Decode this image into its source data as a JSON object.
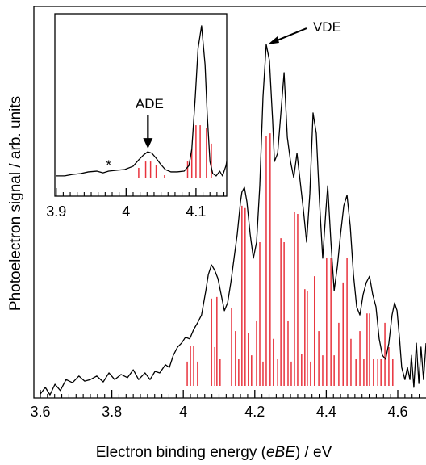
{
  "chart_data": [
    {
      "type": "line",
      "ylabel": "Photoelectron signal / arb. units",
      "xlabel": [
        "Electron binding energy (",
        "eBE",
        ") / eV"
      ],
      "xlim": [
        3.582,
        4.679
      ],
      "ylim": [
        0,
        100
      ],
      "xticks": [
        3.6,
        3.8,
        4.0,
        4.2,
        4.4,
        4.6
      ],
      "xminorticks": [
        3.62,
        3.64,
        3.66,
        3.68,
        3.7,
        3.72,
        3.74,
        3.76,
        3.78,
        3.82,
        3.84,
        3.86,
        3.88,
        3.9,
        3.92,
        3.94,
        3.96,
        3.98,
        4.02,
        4.04,
        4.06,
        4.08,
        4.1,
        4.12,
        4.14,
        4.16,
        4.18,
        4.22,
        4.24,
        4.26,
        4.28,
        4.3,
        4.32,
        4.34,
        4.36,
        4.38,
        4.42,
        4.44,
        4.46,
        4.48,
        4.5,
        4.52,
        4.54,
        4.56,
        4.58,
        4.62,
        4.64,
        4.66
      ],
      "annotations": [
        {
          "text": "VDE",
          "x": 4.232,
          "y": 90.3
        }
      ],
      "line": {
        "color": "#000000",
        "x": [
          3.6,
          3.614,
          3.627,
          3.641,
          3.656,
          3.672,
          3.69,
          3.708,
          3.724,
          3.74,
          3.758,
          3.776,
          3.792,
          3.808,
          3.826,
          3.844,
          3.86,
          3.875,
          3.893,
          3.907,
          3.921,
          3.934,
          3.95,
          3.961,
          3.972,
          3.984,
          3.995,
          4.006,
          4.018,
          4.029,
          4.04,
          4.051,
          4.063,
          4.07,
          4.079,
          4.088,
          4.097,
          4.106,
          4.115,
          4.124,
          4.133,
          4.142,
          4.151,
          4.16,
          4.164,
          4.171,
          4.178,
          4.187,
          4.196,
          4.205,
          4.214,
          4.223,
          4.232,
          4.241,
          4.25,
          4.255,
          4.264,
          4.273,
          4.282,
          4.291,
          4.3,
          4.309,
          4.318,
          4.327,
          4.336,
          4.345,
          4.354,
          4.363,
          4.372,
          4.381,
          4.39,
          4.399,
          4.404,
          4.413,
          4.422,
          4.431,
          4.44,
          4.449,
          4.458,
          4.467,
          4.476,
          4.485,
          4.494,
          4.503,
          4.512,
          4.521,
          4.53,
          4.539,
          4.548,
          4.557,
          4.566,
          4.575,
          4.584,
          4.591,
          4.598,
          4.605,
          4.611,
          4.62,
          4.627,
          4.634,
          4.638,
          4.645,
          4.652,
          4.659,
          4.665,
          4.672,
          4.679
        ],
        "values": [
          1.0,
          2.7,
          0.8,
          3.5,
          1.9,
          4.7,
          3.9,
          5.6,
          4.3,
          4.7,
          5.6,
          4.1,
          6.4,
          4.7,
          6.0,
          5.2,
          7.2,
          4.7,
          6.4,
          4.7,
          6.8,
          6.4,
          8.5,
          7.8,
          10.9,
          13.0,
          14.0,
          15.5,
          15.1,
          17.5,
          19.2,
          21.2,
          27.4,
          31.5,
          34.0,
          32.6,
          30.5,
          26.4,
          22.3,
          24.3,
          29.5,
          35.7,
          41.9,
          50.1,
          52.6,
          53.8,
          50.1,
          41.9,
          35.7,
          39.8,
          54.2,
          76.9,
          90.3,
          86.2,
          70.7,
          60.4,
          62.5,
          72.8,
          83.1,
          66.6,
          60.4,
          56.3,
          62.5,
          55.3,
          48.0,
          39.8,
          52.2,
          72.8,
          67.6,
          50.1,
          35.7,
          48.0,
          54.2,
          39.8,
          27.4,
          33.6,
          41.9,
          49.1,
          51.8,
          43.9,
          31.5,
          23.3,
          21.2,
          26.4,
          29.5,
          31.1,
          26.4,
          23.3,
          15.1,
          10.9,
          9.9,
          14.0,
          21.2,
          24.3,
          22.3,
          15.1,
          7.8,
          4.7,
          7.8,
          4.7,
          10.9,
          2.7,
          14.0,
          3.7,
          13.0,
          4.7,
          14.0
        ]
      },
      "sticks": {
        "color": "#e8323c",
        "x": [
          4.011,
          4.02,
          4.029,
          4.04,
          4.079,
          4.088,
          4.094,
          4.103,
          4.135,
          4.146,
          4.155,
          4.164,
          4.173,
          4.182,
          4.191,
          4.205,
          4.214,
          4.223,
          4.232,
          4.243,
          4.252,
          4.264,
          4.273,
          4.282,
          4.293,
          4.302,
          4.311,
          4.32,
          4.331,
          4.34,
          4.347,
          4.356,
          4.367,
          4.379,
          4.39,
          4.401,
          4.413,
          4.422,
          4.435,
          4.447,
          4.458,
          4.469,
          4.483,
          4.494,
          4.505,
          4.514,
          4.521,
          4.532,
          4.544,
          4.553,
          4.564,
          4.575,
          4.586
        ],
        "values": [
          9.3,
          13.4,
          13.4,
          9.3,
          25.4,
          13.0,
          25.8,
          9.9,
          22.9,
          17.1,
          9.9,
          49.1,
          48.5,
          16.7,
          10.9,
          19.6,
          39.8,
          9.3,
          67.0,
          67.6,
          15.1,
          9.9,
          40.8,
          39.8,
          19.6,
          9.3,
          47.6,
          47.0,
          11.3,
          27.8,
          27.4,
          9.3,
          31.1,
          17.1,
          10.9,
          35.7,
          35.7,
          10.9,
          19.2,
          29.5,
          35.7,
          15.1,
          9.9,
          17.1,
          9.9,
          21.6,
          21.6,
          9.9,
          9.9,
          9.9,
          19.2,
          13.0,
          9.9
        ]
      }
    },
    {
      "type": "line",
      "xlim": [
        3.898,
        4.144
      ],
      "ylim": [
        0,
        100
      ],
      "xticks": [
        3.9,
        4.0,
        4.1
      ],
      "xminorticks": [
        3.91,
        3.92,
        3.93,
        3.94,
        3.95,
        3.96,
        3.97,
        3.98,
        3.99,
        4.01,
        4.02,
        4.03,
        4.04,
        4.05,
        4.06,
        4.07,
        4.08,
        4.09,
        4.11,
        4.12,
        4.13,
        4.14
      ],
      "annotations": [
        {
          "text": "ADE",
          "x": 4.037,
          "y": 24.3
        },
        {
          "text": "*",
          "x": 3.975,
          "y": 13.7
        }
      ],
      "line": {
        "color": "#000000",
        "x": [
          3.9,
          3.912,
          3.923,
          3.935,
          3.946,
          3.958,
          3.967,
          3.975,
          3.987,
          3.998,
          4.01,
          4.018,
          4.025,
          4.031,
          4.037,
          4.043,
          4.049,
          4.056,
          4.064,
          4.073,
          4.083,
          4.09,
          4.094,
          4.099,
          4.103,
          4.108,
          4.113,
          4.116,
          4.12,
          4.124,
          4.129,
          4.134,
          4.138,
          4.143,
          4.144
        ],
        "values": [
          11.1,
          11.1,
          11.9,
          12.4,
          13.3,
          13.7,
          12.8,
          13.7,
          14.2,
          14.6,
          16.4,
          19.9,
          22.6,
          24.3,
          23.5,
          20.8,
          17.7,
          14.6,
          13.3,
          13.3,
          13.7,
          16.8,
          25.7,
          54.4,
          81.0,
          93.4,
          72.1,
          45.6,
          19.0,
          12.4,
          11.1,
          13.7,
          11.1,
          16.8,
          19.0
        ]
      },
      "sticks": {
        "color": "#e8323c",
        "x": [
          4.018,
          4.028,
          4.035,
          4.043,
          4.055,
          4.088,
          4.094,
          4.1,
          4.106,
          4.115,
          4.122
        ],
        "values": [
          15.5,
          19.0,
          19.0,
          16.8,
          11.5,
          19.0,
          25.7,
          38.9,
          38.9,
          37.6,
          28.8
        ]
      }
    }
  ]
}
